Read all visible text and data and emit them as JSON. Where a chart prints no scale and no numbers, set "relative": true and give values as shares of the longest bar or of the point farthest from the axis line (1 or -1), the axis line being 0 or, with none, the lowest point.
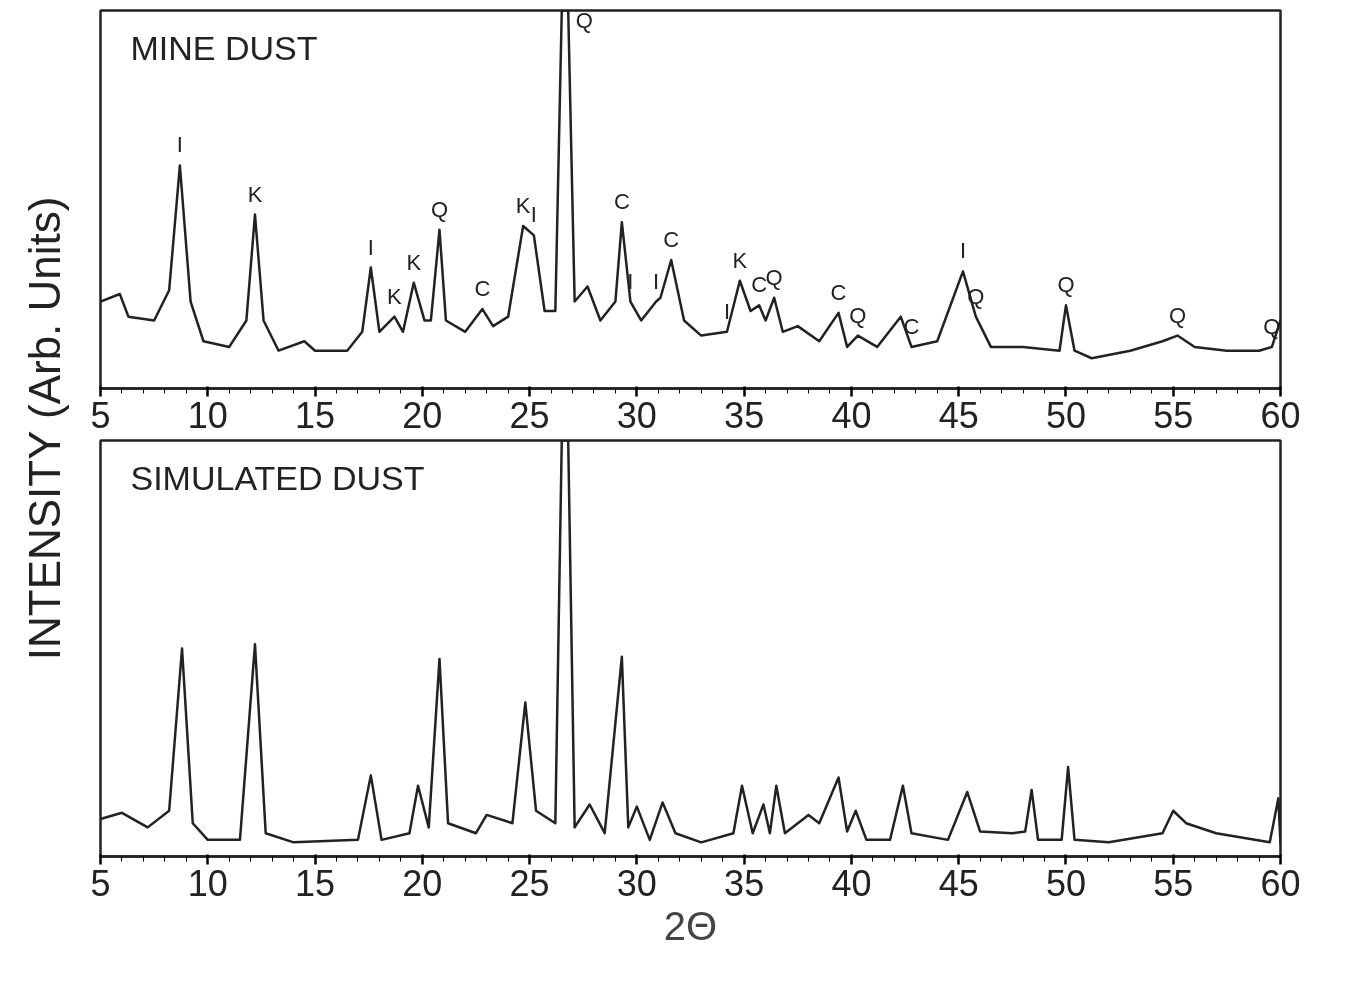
{
  "chart_data": [
    {
      "type": "line",
      "title": "MINE DUST",
      "ylabel": "INTENSITY (Arb. Units)",
      "relative": true,
      "xlim": [
        5,
        60
      ],
      "xticks": [
        5,
        10,
        15,
        20,
        25,
        30,
        35,
        40,
        45,
        50,
        55,
        60
      ],
      "grid": false,
      "marker": "none",
      "line_style": "solid",
      "series": [
        {
          "color": "#222222",
          "x": [
            5.0,
            5.9,
            6.3,
            7.5,
            8.2,
            8.7,
            9.2,
            9.8,
            11,
            11.8,
            12.2,
            12.6,
            13.3,
            14.5,
            15,
            16.5,
            17.2,
            17.6,
            18.0,
            18.7,
            19.1,
            19.6,
            20.1,
            20.4,
            20.8,
            21.1,
            22.0,
            22.8,
            23.3,
            24.0,
            24.7,
            25.2,
            25.7,
            26.2,
            26.5,
            26.8,
            27.1,
            27.7,
            28.3,
            29.0,
            29.3,
            29.7,
            30.2,
            30.9,
            31.1,
            31.6,
            32.2,
            33,
            34.2,
            34.8,
            35.3,
            35.7,
            36.0,
            36.4,
            36.8,
            37.5,
            38.5,
            39.4,
            39.8,
            40.3,
            41.2,
            42.3,
            42.8,
            44.0,
            45.2,
            45.8,
            46.5,
            48,
            49.7,
            50.0,
            50.4,
            51.2,
            53,
            54.5,
            55.2,
            56,
            57.5,
            59,
            59.6,
            60.0
          ],
          "values": [
            0.23,
            0.25,
            0.19,
            0.18,
            0.26,
            0.59,
            0.23,
            0.125,
            0.11,
            0.18,
            0.46,
            0.18,
            0.1,
            0.125,
            0.1,
            0.1,
            0.15,
            0.32,
            0.15,
            0.19,
            0.15,
            0.28,
            0.18,
            0.18,
            0.42,
            0.18,
            0.15,
            0.21,
            0.165,
            0.19,
            0.43,
            0.405,
            0.205,
            0.205,
            1.0,
            1.0,
            0.23,
            0.27,
            0.18,
            0.23,
            0.44,
            0.23,
            0.18,
            0.23,
            0.24,
            0.34,
            0.18,
            0.14,
            0.15,
            0.285,
            0.205,
            0.22,
            0.18,
            0.24,
            0.15,
            0.165,
            0.125,
            0.2,
            0.11,
            0.14,
            0.11,
            0.19,
            0.11,
            0.125,
            0.31,
            0.19,
            0.11,
            0.11,
            0.1,
            0.22,
            0.1,
            0.08,
            0.1,
            0.125,
            0.14,
            0.11,
            0.1,
            0.1,
            0.11,
            0.18
          ]
        }
      ],
      "annotations": [
        {
          "text": "I",
          "x": 8.7,
          "y": 0.59
        },
        {
          "text": "K",
          "x": 12.2,
          "y": 0.46
        },
        {
          "text": "I",
          "x": 17.6,
          "y": 0.32
        },
        {
          "text": "K",
          "x": 18.7,
          "y": 0.19
        },
        {
          "text": "K",
          "x": 19.6,
          "y": 0.28
        },
        {
          "text": "Q",
          "x": 20.8,
          "y": 0.42
        },
        {
          "text": "C",
          "x": 22.8,
          "y": 0.21
        },
        {
          "text": "K",
          "x": 24.7,
          "y": 0.43
        },
        {
          "text": "I",
          "x": 25.2,
          "y": 0.405
        },
        {
          "text": "Q",
          "x": 26.8,
          "y": 1.0
        },
        {
          "text": "C",
          "x": 29.3,
          "y": 0.44
        },
        {
          "text": "I",
          "x": 29.7,
          "y": 0.23
        },
        {
          "text": "I",
          "x": 30.9,
          "y": 0.23
        },
        {
          "text": "C",
          "x": 31.6,
          "y": 0.34
        },
        {
          "text": "I",
          "x": 34.2,
          "y": 0.15
        },
        {
          "text": "K",
          "x": 34.8,
          "y": 0.285
        },
        {
          "text": "C",
          "x": 35.7,
          "y": 0.22
        },
        {
          "text": "Q",
          "x": 36.4,
          "y": 0.24
        },
        {
          "text": "C",
          "x": 39.4,
          "y": 0.2
        },
        {
          "text": "Q",
          "x": 40.3,
          "y": 0.14
        },
        {
          "text": "C",
          "x": 42.8,
          "y": 0.11
        },
        {
          "text": "I",
          "x": 45.2,
          "y": 0.31
        },
        {
          "text": "Q",
          "x": 45.8,
          "y": 0.19
        },
        {
          "text": "Q",
          "x": 50.0,
          "y": 0.22
        },
        {
          "text": "Q",
          "x": 55.2,
          "y": 0.14
        },
        {
          "text": "Q",
          "x": 59.6,
          "y": 0.11
        }
      ]
    },
    {
      "type": "line",
      "title": "SIMULATED DUST",
      "xlabel": "2Θ",
      "relative": true,
      "xlim": [
        5,
        60
      ],
      "xticks": [
        5,
        10,
        15,
        20,
        25,
        30,
        35,
        40,
        45,
        50,
        55,
        60
      ],
      "grid": false,
      "marker": "none",
      "line_style": "solid",
      "series": [
        {
          "color": "#222222",
          "x": [
            5,
            6,
            7.2,
            8.2,
            8.8,
            9.3,
            10,
            11.5,
            12.2,
            12.7,
            14,
            17,
            17.6,
            18.1,
            19.4,
            19.8,
            20.3,
            20.8,
            21.2,
            22.5,
            23,
            24.2,
            24.8,
            25.3,
            26.2,
            26.5,
            26.8,
            27.1,
            27.8,
            28.5,
            29.3,
            29.6,
            30.0,
            30.6,
            31.2,
            31.8,
            33,
            34.5,
            34.9,
            35.4,
            35.9,
            36.2,
            36.5,
            36.9,
            38.0,
            38.5,
            39.4,
            39.8,
            40.2,
            40.7,
            41.8,
            42.4,
            42.8,
            44.5,
            45.4,
            46.0,
            47.5,
            48.1,
            48.4,
            48.7,
            49.8,
            50.1,
            50.4,
            52,
            54.5,
            55,
            55.6,
            57,
            59.5,
            59.9,
            60.0
          ],
          "values": [
            0.09,
            0.105,
            0.07,
            0.11,
            0.5,
            0.08,
            0.04,
            0.04,
            0.51,
            0.056,
            0.034,
            0.04,
            0.195,
            0.04,
            0.056,
            0.17,
            0.07,
            0.475,
            0.08,
            0.056,
            0.1,
            0.08,
            0.37,
            0.11,
            0.08,
            1.0,
            1.0,
            0.07,
            0.125,
            0.056,
            0.48,
            0.07,
            0.12,
            0.04,
            0.13,
            0.056,
            0.034,
            0.056,
            0.17,
            0.056,
            0.125,
            0.056,
            0.17,
            0.056,
            0.1,
            0.08,
            0.19,
            0.06,
            0.11,
            0.04,
            0.04,
            0.17,
            0.056,
            0.04,
            0.155,
            0.06,
            0.056,
            0.06,
            0.16,
            0.04,
            0.04,
            0.215,
            0.04,
            0.034,
            0.056,
            0.11,
            0.08,
            0.056,
            0.034,
            0.14,
            0.03
          ]
        }
      ]
    }
  ]
}
